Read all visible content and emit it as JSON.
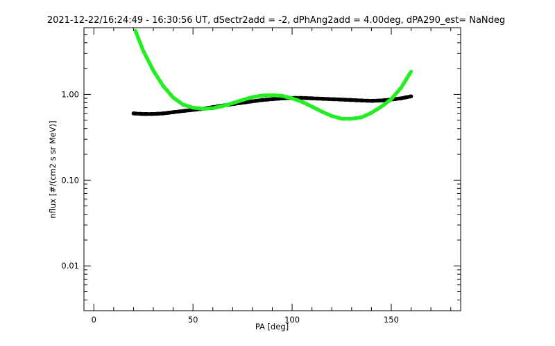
{
  "chart_data": {
    "type": "scatter",
    "title": "2021-12-22/16:24:49 - 16:30:56 UT, dSectr2add = -2, dPhAng2add = 4.00deg, dPA290_est=   NaNdeg",
    "xlabel": "PA [deg]",
    "ylabel": "nflux [#/(cm2 s sr MeV)]",
    "xlim": [
      -5,
      185
    ],
    "ylim": [
      0.003,
      6.0
    ],
    "yscale": "log",
    "x_ticks": [
      0,
      50,
      100,
      150
    ],
    "x_tick_labels": [
      "0",
      "50",
      "100",
      "150"
    ],
    "y_ticks": [
      0.01,
      0.1,
      1.0
    ],
    "y_tick_labels": [
      "0.01",
      "0.10",
      "1.00"
    ],
    "grid": false,
    "series": [
      {
        "color": "#000000",
        "x": [
          20,
          25,
          30,
          35,
          40,
          45,
          50,
          55,
          60,
          65,
          70,
          75,
          80,
          85,
          90,
          95,
          100,
          105,
          110,
          115,
          120,
          125,
          130,
          135,
          140,
          145,
          150,
          155,
          160
        ],
        "y": [
          0.6,
          0.59,
          0.59,
          0.6,
          0.62,
          0.64,
          0.66,
          0.68,
          0.71,
          0.74,
          0.77,
          0.8,
          0.83,
          0.86,
          0.88,
          0.9,
          0.91,
          0.91,
          0.9,
          0.89,
          0.88,
          0.87,
          0.86,
          0.85,
          0.84,
          0.85,
          0.87,
          0.9,
          0.95
        ]
      },
      {
        "color": "#22ee22",
        "x": [
          21,
          25,
          30,
          35,
          40,
          45,
          50,
          55,
          60,
          65,
          70,
          75,
          80,
          85,
          90,
          95,
          100,
          105,
          110,
          115,
          120,
          125,
          130,
          135,
          140,
          145,
          150,
          155,
          160
        ],
        "y": [
          5.5,
          3.2,
          1.9,
          1.25,
          0.92,
          0.76,
          0.7,
          0.68,
          0.69,
          0.73,
          0.79,
          0.86,
          0.93,
          0.97,
          0.98,
          0.96,
          0.9,
          0.82,
          0.72,
          0.63,
          0.56,
          0.52,
          0.52,
          0.54,
          0.61,
          0.72,
          0.88,
          1.2,
          1.85
        ]
      }
    ]
  }
}
